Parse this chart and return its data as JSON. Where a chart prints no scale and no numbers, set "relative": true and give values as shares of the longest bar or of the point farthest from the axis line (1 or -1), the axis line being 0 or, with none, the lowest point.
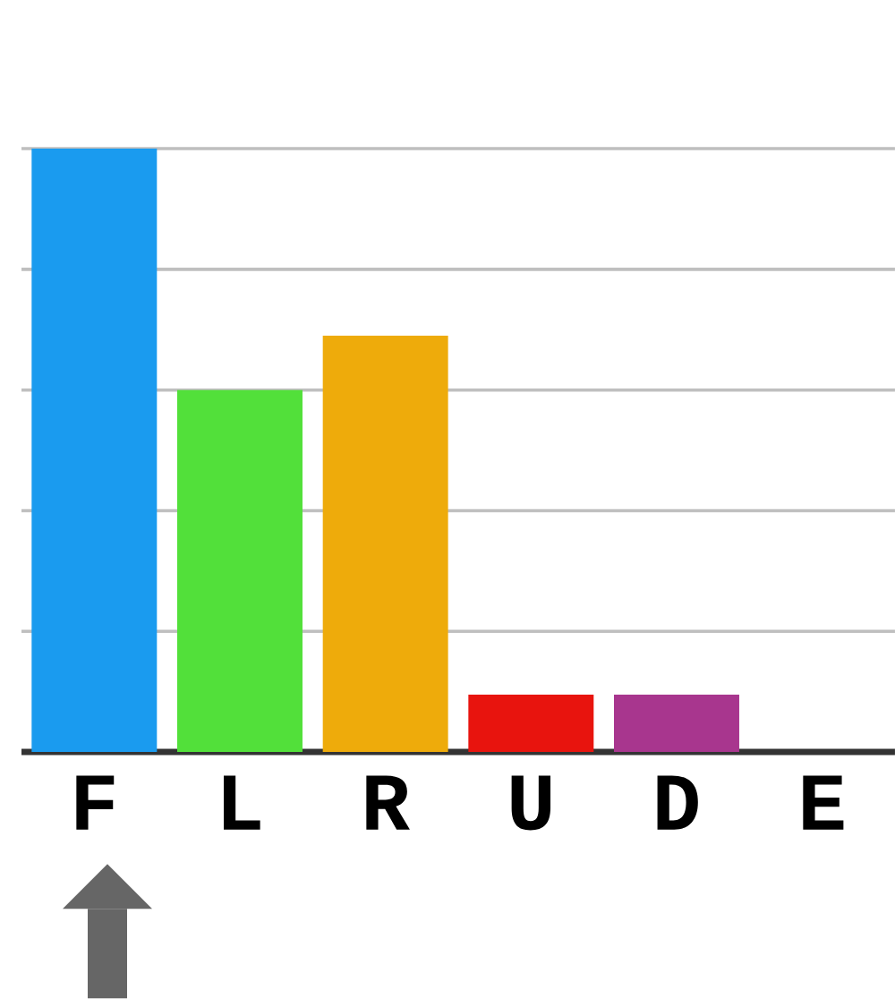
{
  "chart_data": {
    "type": "bar",
    "relative": true,
    "grid": "y",
    "categories": [
      "F",
      "L",
      "R",
      "U",
      "D",
      "E"
    ],
    "values": [
      1,
      0.6,
      0.69,
      0.095,
      0.095,
      0
    ],
    "colors": [
      "#1a9bef",
      "#52e03a",
      "#eeab0b",
      "#e8140e",
      "#a8368e",
      "#333333"
    ]
  }
}
